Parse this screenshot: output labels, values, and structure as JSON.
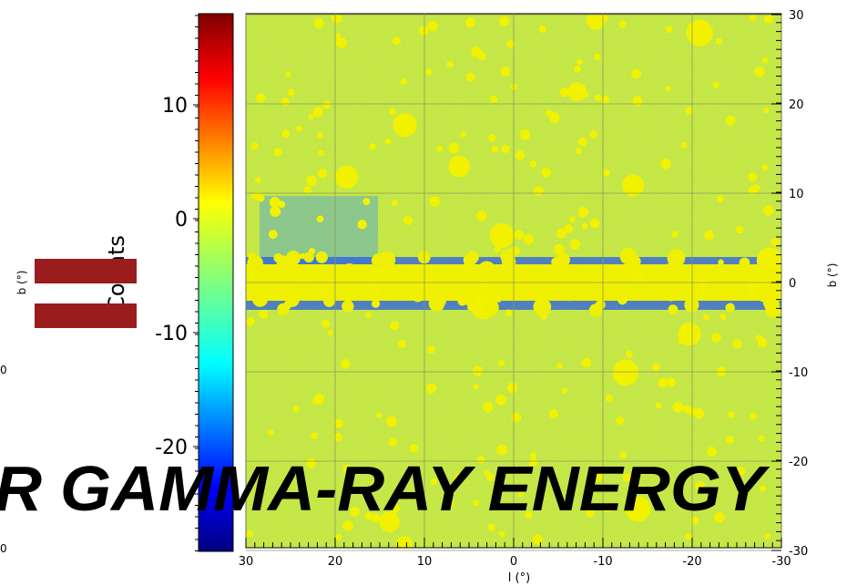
{
  "colorbar": {
    "label": "Counts",
    "ticks": [
      10,
      0,
      -10,
      -20
    ]
  },
  "left_axis": {
    "label": "b (°)",
    "ticks": [
      "0",
      "0"
    ]
  },
  "map": {
    "xlabel": "l (°)",
    "ylabel": "b (°)",
    "xticks": [
      30,
      20,
      10,
      0,
      -10,
      -20,
      -30
    ],
    "yticks": [
      30,
      20,
      10,
      0,
      -10,
      -20,
      -30
    ]
  },
  "banner": "R GAMMA-RAY ENERGY"
}
